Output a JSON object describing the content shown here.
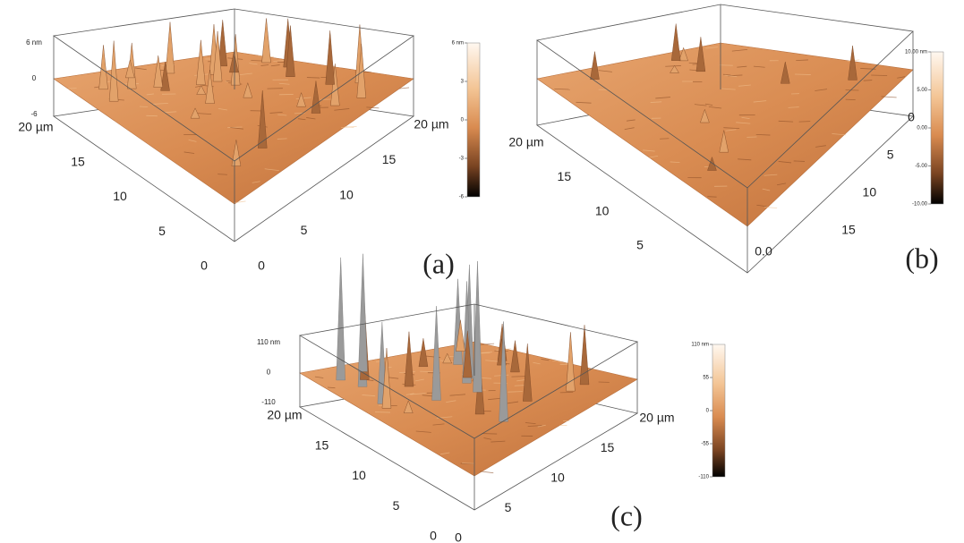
{
  "panels": [
    {
      "label": "(a)",
      "z_axis": [
        "6 nm",
        "0",
        "-6"
      ],
      "left_axis": [
        "20 µm",
        "15",
        "10",
        "5",
        "0"
      ],
      "right_axis": [
        "0",
        "5",
        "10",
        "15",
        "20 µm"
      ],
      "colorbar": [
        "6 nm",
        "3",
        "0",
        "-3",
        "-6"
      ]
    },
    {
      "label": "(b)",
      "origin_label": "0.0",
      "left_axis": [
        "20 µm",
        "15",
        "10",
        "5"
      ],
      "right_axis": [
        "15",
        "10",
        "5",
        "0"
      ],
      "colorbar": [
        "10.00 nm",
        "5.00",
        "0.00",
        "-5.00",
        "-10.00"
      ]
    },
    {
      "label": "(c)",
      "z_axis": [
        "110 nm",
        "0",
        "-110"
      ],
      "left_axis": [
        "20 µm",
        "15",
        "10",
        "5",
        "0"
      ],
      "right_axis": [
        "0",
        "5",
        "10",
        "15",
        "20 µm"
      ],
      "colorbar": [
        "110 nm",
        "55",
        "0",
        "-55",
        "-110"
      ]
    }
  ]
}
